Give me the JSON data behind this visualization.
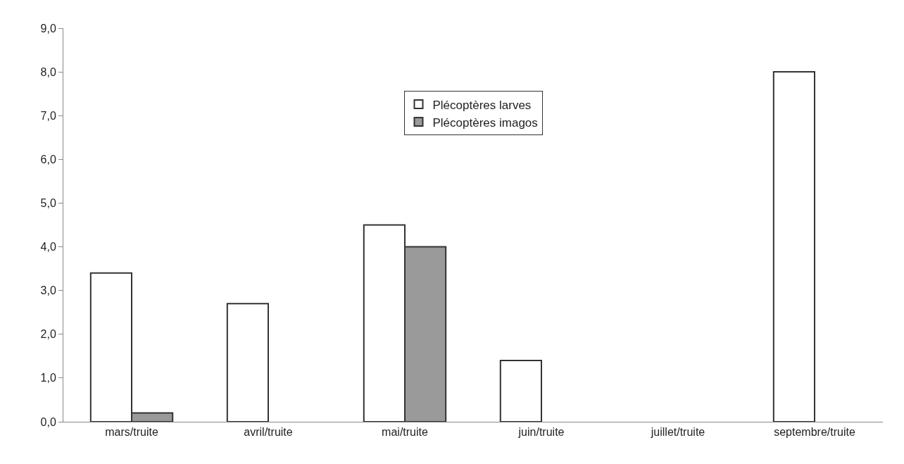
{
  "chart_data": {
    "type": "bar",
    "categories": [
      "mars/truite",
      "avril/truite",
      "mai/truite",
      "juin/truite",
      "juillet/truite",
      "septembre/truite"
    ],
    "series": [
      {
        "name": "Plécoptères larves",
        "color": "#ffffff",
        "values": [
          3.4,
          2.7,
          4.5,
          1.4,
          null,
          8.0
        ]
      },
      {
        "name": "Plécoptères imagos",
        "color": "#9a9a9a",
        "values": [
          0.2,
          null,
          4.0,
          null,
          null,
          null
        ]
      }
    ],
    "ylim": [
      0,
      9
    ],
    "yticks": [
      {
        "value": 0,
        "label": "0,0"
      },
      {
        "value": 1,
        "label": "1,0"
      },
      {
        "value": 2,
        "label": "2,0"
      },
      {
        "value": 3,
        "label": "3,0"
      },
      {
        "value": 4,
        "label": "4,0"
      },
      {
        "value": 5,
        "label": "5,0"
      },
      {
        "value": 6,
        "label": "6,0"
      },
      {
        "value": 7,
        "label": "7,0"
      },
      {
        "value": 8,
        "label": "8,0"
      },
      {
        "value": 9,
        "label": "9,0"
      }
    ],
    "grid": false,
    "legend": "top"
  }
}
